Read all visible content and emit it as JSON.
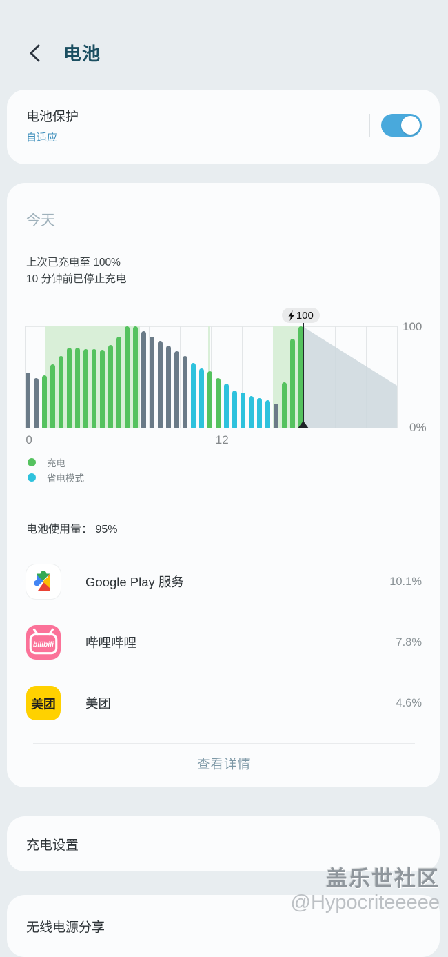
{
  "header": {
    "title": "电池"
  },
  "battery_protection": {
    "title": "电池保护",
    "subtitle": "自适应",
    "toggle_state": "on"
  },
  "today_card": {
    "section_title": "今天",
    "charge_status_line1": "上次已充电至 100%",
    "charge_status_line2": "10 分钟前已停止充电",
    "legend": [
      {
        "label": "充电",
        "color": "#55c25f"
      },
      {
        "label": "省电模式",
        "color": "#2ec2dd"
      }
    ],
    "usage_label": "电池使用量：",
    "usage_value": "95%",
    "apps": [
      {
        "name": "Google Play 服务",
        "percent": "10.1%",
        "icon": "google-play-services-icon"
      },
      {
        "name": "哔哩哔哩",
        "percent": "7.8%",
        "icon": "bilibili-icon",
        "icon_text": "bilibili",
        "icon_color": "#fb7299"
      },
      {
        "name": "美团",
        "percent": "4.6%",
        "icon": "meituan-icon",
        "icon_text": "美团",
        "icon_color": "#ffd100"
      }
    ],
    "details_button": "查看详情"
  },
  "charging_settings": {
    "title": "充电设置"
  },
  "wireless_power_sharing": {
    "title": "无线电源分享"
  },
  "watermark": {
    "line1": "盖乐世社区",
    "line2": "@Hypocriteeeee"
  },
  "chart_data": {
    "type": "bar",
    "title": "",
    "xlabel": "",
    "ylabel": "",
    "x_ticks": [
      "0",
      "12"
    ],
    "x_tick_pct": [
      1.0,
      52.0
    ],
    "y_ticks_right": [
      "100",
      "0%"
    ],
    "ylim": [
      0,
      100
    ],
    "hours_range": [
      0,
      24
    ],
    "bar_values": [
      55,
      49,
      52,
      63,
      71,
      79,
      79,
      78,
      78,
      77,
      82,
      90,
      100,
      100,
      95,
      90,
      86,
      81,
      76,
      71,
      64,
      59,
      56,
      49,
      44,
      37,
      35,
      32,
      30,
      28,
      24,
      45,
      88,
      100
    ],
    "bar_states": [
      "normal",
      "normal",
      "charging",
      "charging",
      "charging",
      "charging",
      "charging",
      "charging",
      "charging",
      "charging",
      "charging",
      "charging",
      "charging",
      "charging",
      "normal",
      "normal",
      "normal",
      "normal",
      "normal",
      "normal",
      "power_saving",
      "power_saving",
      "charging",
      "charging",
      "power_saving",
      "power_saving",
      "power_saving",
      "power_saving",
      "power_saving",
      "power_saving",
      "normal",
      "charging",
      "charging",
      "charging"
    ],
    "charging_bands_pct": [
      [
        5.5,
        31.0
      ],
      [
        49.3,
        49.9
      ],
      [
        66.7,
        74.6
      ]
    ],
    "marker": {
      "pct_x": 74.6,
      "label": "100",
      "icon": "lightning-bolt-icon"
    },
    "projection": {
      "start_pct_x": 74.6,
      "end_pct_x": 100,
      "start_value": 100,
      "end_value": 42
    },
    "gridlines": {
      "count": 13,
      "orientation": "vertical"
    },
    "legend_entries": [
      "充电",
      "省电模式"
    ],
    "colors": {
      "charging": "#55c25f",
      "power_saving": "#2ec2dd",
      "normal": "#6b7b88",
      "charge_band": "#d9efd8",
      "projection": "#ccd7dd",
      "marker": "#23292e"
    }
  }
}
